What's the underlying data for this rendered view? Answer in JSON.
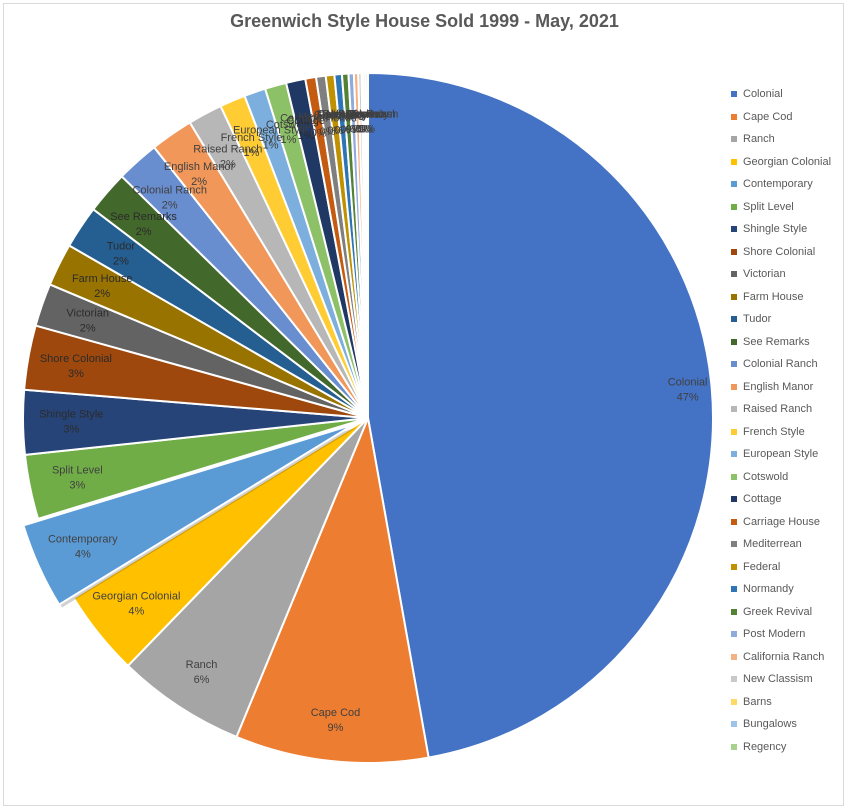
{
  "chart_data": {
    "type": "pie",
    "title": "Greenwich Style House Sold 1999 - May, 2021",
    "legend_position": "right",
    "exploded_slice": "Contemporary",
    "slices": [
      {
        "label": "Colonial",
        "value": 47,
        "value_label": "47%",
        "color": "#4472c4"
      },
      {
        "label": "Cape Cod",
        "value": 9,
        "value_label": "9%",
        "color": "#ed7d31"
      },
      {
        "label": "Ranch",
        "value": 6,
        "value_label": "6%",
        "color": "#a5a5a5"
      },
      {
        "label": "Georgian Colonial",
        "value": 4,
        "value_label": "4%",
        "color": "#ffc000"
      },
      {
        "label": "Contemporary",
        "value": 4,
        "value_label": "4%",
        "color": "#5b9bd5"
      },
      {
        "label": "Split Level",
        "value": 3,
        "value_label": "3%",
        "color": "#70ad47"
      },
      {
        "label": "Shingle Style",
        "value": 3,
        "value_label": "3%",
        "color": "#264478"
      },
      {
        "label": "Shore Colonial",
        "value": 3,
        "value_label": "3%",
        "color": "#9e480e"
      },
      {
        "label": "Victorian",
        "value": 2,
        "value_label": "2%",
        "color": "#636363"
      },
      {
        "label": "Farm House",
        "value": 2,
        "value_label": "2%",
        "color": "#997300"
      },
      {
        "label": "Tudor",
        "value": 2,
        "value_label": "2%",
        "color": "#255e91"
      },
      {
        "label": "See Remarks",
        "value": 2,
        "value_label": "2%",
        "color": "#43682b"
      },
      {
        "label": "Colonial Ranch",
        "value": 2,
        "value_label": "2%",
        "color": "#698ed0"
      },
      {
        "label": "English Manor",
        "value": 2,
        "value_label": "2%",
        "color": "#f1975a"
      },
      {
        "label": "Raised Ranch",
        "value": 1.6,
        "value_label": "2%",
        "color": "#b7b7b7"
      },
      {
        "label": "French Style",
        "value": 1.2,
        "value_label": "1%",
        "color": "#ffcd33"
      },
      {
        "label": "European Style",
        "value": 1,
        "value_label": "1%",
        "color": "#7cafdd"
      },
      {
        "label": "Cotswold",
        "value": 1,
        "value_label": "1%",
        "color": "#8cc168"
      },
      {
        "label": "Cottage",
        "value": 0.9,
        "value_label": "1%",
        "color": "#203864"
      },
      {
        "label": "Carriage House",
        "value": 0.5,
        "value_label": "0%",
        "color": "#c55a11"
      },
      {
        "label": "Mediterrean",
        "value": 0.45,
        "value_label": "0%",
        "color": "#7f7f7f"
      },
      {
        "label": "Federal",
        "value": 0.4,
        "value_label": "0%",
        "color": "#bf9000"
      },
      {
        "label": "Normandy",
        "value": 0.35,
        "value_label": "0%",
        "color": "#2e75b6"
      },
      {
        "label": "Greek Revival",
        "value": 0.3,
        "value_label": "0%",
        "color": "#548235"
      },
      {
        "label": "Post Modern",
        "value": 0.25,
        "value_label": "0%",
        "color": "#8faadc"
      },
      {
        "label": "California Ranch",
        "value": 0.2,
        "value_label": "0%",
        "color": "#f4b183"
      },
      {
        "label": "New Classism",
        "value": 0.15,
        "value_label": "0%",
        "color": "#c9c9c9"
      },
      {
        "label": "Barns",
        "value": 0.1,
        "value_label": "0%",
        "color": "#ffd966"
      },
      {
        "label": "Bungalows",
        "value": 0.1,
        "value_label": "0%",
        "color": "#9dc3e6"
      },
      {
        "label": "Regency",
        "value": 0.1,
        "value_label": "0%",
        "color": "#a9d18e"
      }
    ]
  }
}
